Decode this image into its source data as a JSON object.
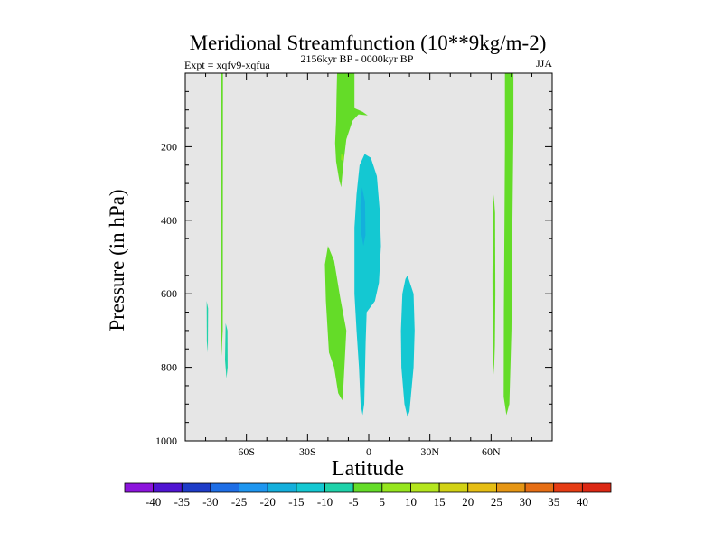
{
  "chart_data": {
    "type": "contour",
    "title": "Meridional Streamfunction (10**9kg/m-2)",
    "left_label": "Expt = xqfv9-xqfua",
    "center_label": "2156kyr BP - 0000kyr BP",
    "right_label": "JJA",
    "xlabel": "Latitude",
    "ylabel": "Pressure (in hPa)",
    "xlim": [
      -90,
      90
    ],
    "ylim": [
      1000,
      0
    ],
    "x_ticks": [
      -60,
      -30,
      0,
      30,
      60
    ],
    "x_tick_labels": [
      "60S",
      "30S",
      "0",
      "30N",
      "60N"
    ],
    "y_ticks": [
      200,
      400,
      600,
      800,
      1000
    ],
    "y_tick_labels": [
      "200",
      "400",
      "600",
      "800",
      "1000"
    ],
    "background_color": "#e6e6e6",
    "colorbar": {
      "colors": [
        "#8c14dc",
        "#5014d2",
        "#1e3cc8",
        "#1e6ee6",
        "#1e96f0",
        "#14afdc",
        "#14c8d2",
        "#1ed2aa",
        "#64dc28",
        "#96e61e",
        "#b4e61e",
        "#d2d214",
        "#e6be14",
        "#e69614",
        "#e66e14",
        "#e63c14",
        "#dc2814"
      ],
      "labels": [
        "-40",
        "-35",
        "-30",
        "-25",
        "-20",
        "-15",
        "-10",
        "-5",
        "5",
        "10",
        "15",
        "20",
        "25",
        "30",
        "35",
        "40"
      ]
    },
    "regions": [
      {
        "name": "green-column-70s",
        "fill": "#64dc28",
        "level": "5 to 10",
        "points": [
          [
            -72.5,
            0
          ],
          [
            -71.5,
            0
          ],
          [
            -71.6,
            700
          ],
          [
            -72.2,
            770
          ],
          [
            -72.4,
            700
          ]
        ]
      },
      {
        "name": "cyan-patch-78s",
        "fill": "#1ed2aa",
        "level": "-10 to -5",
        "points": [
          [
            -79.5,
            620
          ],
          [
            -78.8,
            640
          ],
          [
            -78.9,
            760
          ],
          [
            -79.4,
            730
          ]
        ]
      },
      {
        "name": "cyan-patch-69s",
        "fill": "#1ed2aa",
        "level": "-10 to -5",
        "points": [
          [
            -70.2,
            680
          ],
          [
            -69.3,
            700
          ],
          [
            -69.2,
            800
          ],
          [
            -69.8,
            830
          ],
          [
            -70.5,
            780
          ]
        ]
      },
      {
        "name": "green-upper-tropics",
        "fill": "#64dc28",
        "level": "5 to 10",
        "points": [
          [
            -15.5,
            0
          ],
          [
            -7,
            0
          ],
          [
            -7,
            95
          ],
          [
            -3,
            105
          ],
          [
            -0.5,
            115
          ],
          [
            -5,
            112
          ],
          [
            -8,
            130
          ],
          [
            -11,
            180
          ],
          [
            -12.5,
            250
          ],
          [
            -13.5,
            310
          ],
          [
            -14.5,
            290
          ],
          [
            -16,
            240
          ],
          [
            -16.5,
            190
          ],
          [
            -16,
            130
          ],
          [
            -15.8,
            60
          ]
        ]
      },
      {
        "name": "green-inner-dot",
        "fill": "#96e61e",
        "level": "10 to 15",
        "points": [
          [
            -13.5,
            220
          ],
          [
            -12.2,
            225
          ],
          [
            -12.5,
            240
          ],
          [
            -13.6,
            235
          ]
        ]
      },
      {
        "name": "cyan-equatorial-cell",
        "fill": "#14c8d2",
        "level": "-15 to -10",
        "points": [
          [
            -2,
            220
          ],
          [
            1,
            230
          ],
          [
            4,
            280
          ],
          [
            5.5,
            380
          ],
          [
            6,
            470
          ],
          [
            5,
            570
          ],
          [
            3,
            620
          ],
          [
            -1,
            650
          ],
          [
            -1.5,
            730
          ],
          [
            -2.2,
            900
          ],
          [
            -3,
            930
          ],
          [
            -4,
            900
          ],
          [
            -4.8,
            800
          ],
          [
            -6,
            700
          ],
          [
            -7,
            600
          ],
          [
            -7,
            540
          ],
          [
            -7,
            420
          ],
          [
            -6,
            330
          ],
          [
            -4.5,
            250
          ]
        ]
      },
      {
        "name": "cyan-equatorial-core",
        "fill": "#14afdc",
        "level": "-20 to -15",
        "points": [
          [
            -3.3,
            310
          ],
          [
            -1.8,
            350
          ],
          [
            -1.6,
            440
          ],
          [
            -2.6,
            470
          ],
          [
            -3.8,
            430
          ],
          [
            -4.1,
            360
          ]
        ]
      },
      {
        "name": "green-left-lobe",
        "fill": "#64dc28",
        "level": "5 to 10",
        "points": [
          [
            -20,
            470
          ],
          [
            -17,
            510
          ],
          [
            -14,
            610
          ],
          [
            -11,
            700
          ],
          [
            -12.5,
            860
          ],
          [
            -13,
            890
          ],
          [
            -15,
            870
          ],
          [
            -17,
            800
          ],
          [
            -19.5,
            760
          ],
          [
            -21,
            620
          ],
          [
            -21.5,
            520
          ]
        ]
      },
      {
        "name": "cyan-20n-cell",
        "fill": "#14c8d2",
        "level": "-15 to -10",
        "points": [
          [
            19,
            550
          ],
          [
            22,
            600
          ],
          [
            22.5,
            700
          ],
          [
            22,
            800
          ],
          [
            20,
            920
          ],
          [
            19,
            935
          ],
          [
            17.5,
            900
          ],
          [
            16,
            800
          ],
          [
            15.8,
            700
          ],
          [
            16.5,
            600
          ],
          [
            18,
            560
          ]
        ]
      },
      {
        "name": "green-column-62n",
        "fill": "#64dc28",
        "level": "5 to 10",
        "points": [
          [
            61.3,
            330
          ],
          [
            62,
            380
          ],
          [
            62.1,
            600
          ],
          [
            61.9,
            740
          ],
          [
            61.4,
            820
          ],
          [
            60.8,
            740
          ],
          [
            60.7,
            550
          ],
          [
            60.9,
            400
          ]
        ]
      },
      {
        "name": "green-column-68n",
        "fill": "#64dc28",
        "level": "5 to 10",
        "points": [
          [
            66.8,
            0
          ],
          [
            71,
            0
          ],
          [
            71,
            150
          ],
          [
            70.5,
            400
          ],
          [
            70,
            700
          ],
          [
            69,
            900
          ],
          [
            67.5,
            930
          ],
          [
            66.2,
            880
          ],
          [
            66.3,
            650
          ],
          [
            66.6,
            400
          ],
          [
            66.8,
            200
          ]
        ]
      }
    ]
  }
}
